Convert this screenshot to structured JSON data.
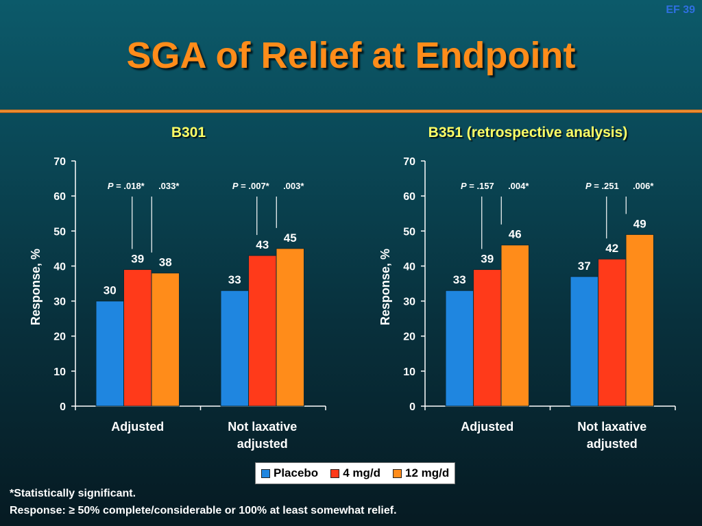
{
  "slide": {
    "number": "EF 39",
    "title": "SGA of Relief at Endpoint",
    "footnotes": [
      "*Statistically significant.",
      "Response: ≥ 50% complete/considerable or 100% at least somewhat relief."
    ]
  },
  "legend": {
    "items": [
      {
        "label": "Placebo",
        "color": "#1f86e0"
      },
      {
        "label": "4 mg/d",
        "color": "#ff3a1a"
      },
      {
        "label": "12 mg/d",
        "color": "#ff8c1a"
      }
    ]
  },
  "chart_data": [
    {
      "type": "bar",
      "title": "B301",
      "ylabel": "Response, %",
      "ylim": [
        0,
        70
      ],
      "yticks": [
        0,
        10,
        20,
        30,
        40,
        50,
        60,
        70
      ],
      "categories": [
        "Adjusted",
        "Not laxative adjusted"
      ],
      "category_lines": [
        [
          "Adjusted"
        ],
        [
          "Not laxative",
          "adjusted"
        ]
      ],
      "series": [
        {
          "name": "Placebo",
          "color": "#1f86e0",
          "values": [
            30,
            33
          ]
        },
        {
          "name": "4 mg/d",
          "color": "#ff3a1a",
          "values": [
            39,
            43
          ]
        },
        {
          "name": "12 mg/d",
          "color": "#ff8c1a",
          "values": [
            38,
            45
          ]
        }
      ],
      "annotations": [
        {
          "p_label": "P",
          "text_4mg": " = .018*",
          "text_12mg": ".033*"
        },
        {
          "p_label": "P",
          "text_4mg": " = .007*",
          "text_12mg": ".003*"
        }
      ]
    },
    {
      "type": "bar",
      "title": "B351 (retrospective analysis)",
      "ylabel": "Response, %",
      "ylim": [
        0,
        70
      ],
      "yticks": [
        0,
        10,
        20,
        30,
        40,
        50,
        60,
        70
      ],
      "categories": [
        "Adjusted",
        "Not laxative adjusted"
      ],
      "category_lines": [
        [
          "Adjusted"
        ],
        [
          "Not laxative",
          "adjusted"
        ]
      ],
      "series": [
        {
          "name": "Placebo",
          "color": "#1f86e0",
          "values": [
            33,
            37
          ]
        },
        {
          "name": "4 mg/d",
          "color": "#ff3a1a",
          "values": [
            39,
            42
          ]
        },
        {
          "name": "12 mg/d",
          "color": "#ff8c1a",
          "values": [
            46,
            49
          ]
        }
      ],
      "annotations": [
        {
          "p_label": "P",
          "text_4mg": " =  .157",
          "text_12mg": ".004*"
        },
        {
          "p_label": "P",
          "text_4mg": " = .251",
          "text_12mg": ".006*"
        }
      ]
    }
  ]
}
